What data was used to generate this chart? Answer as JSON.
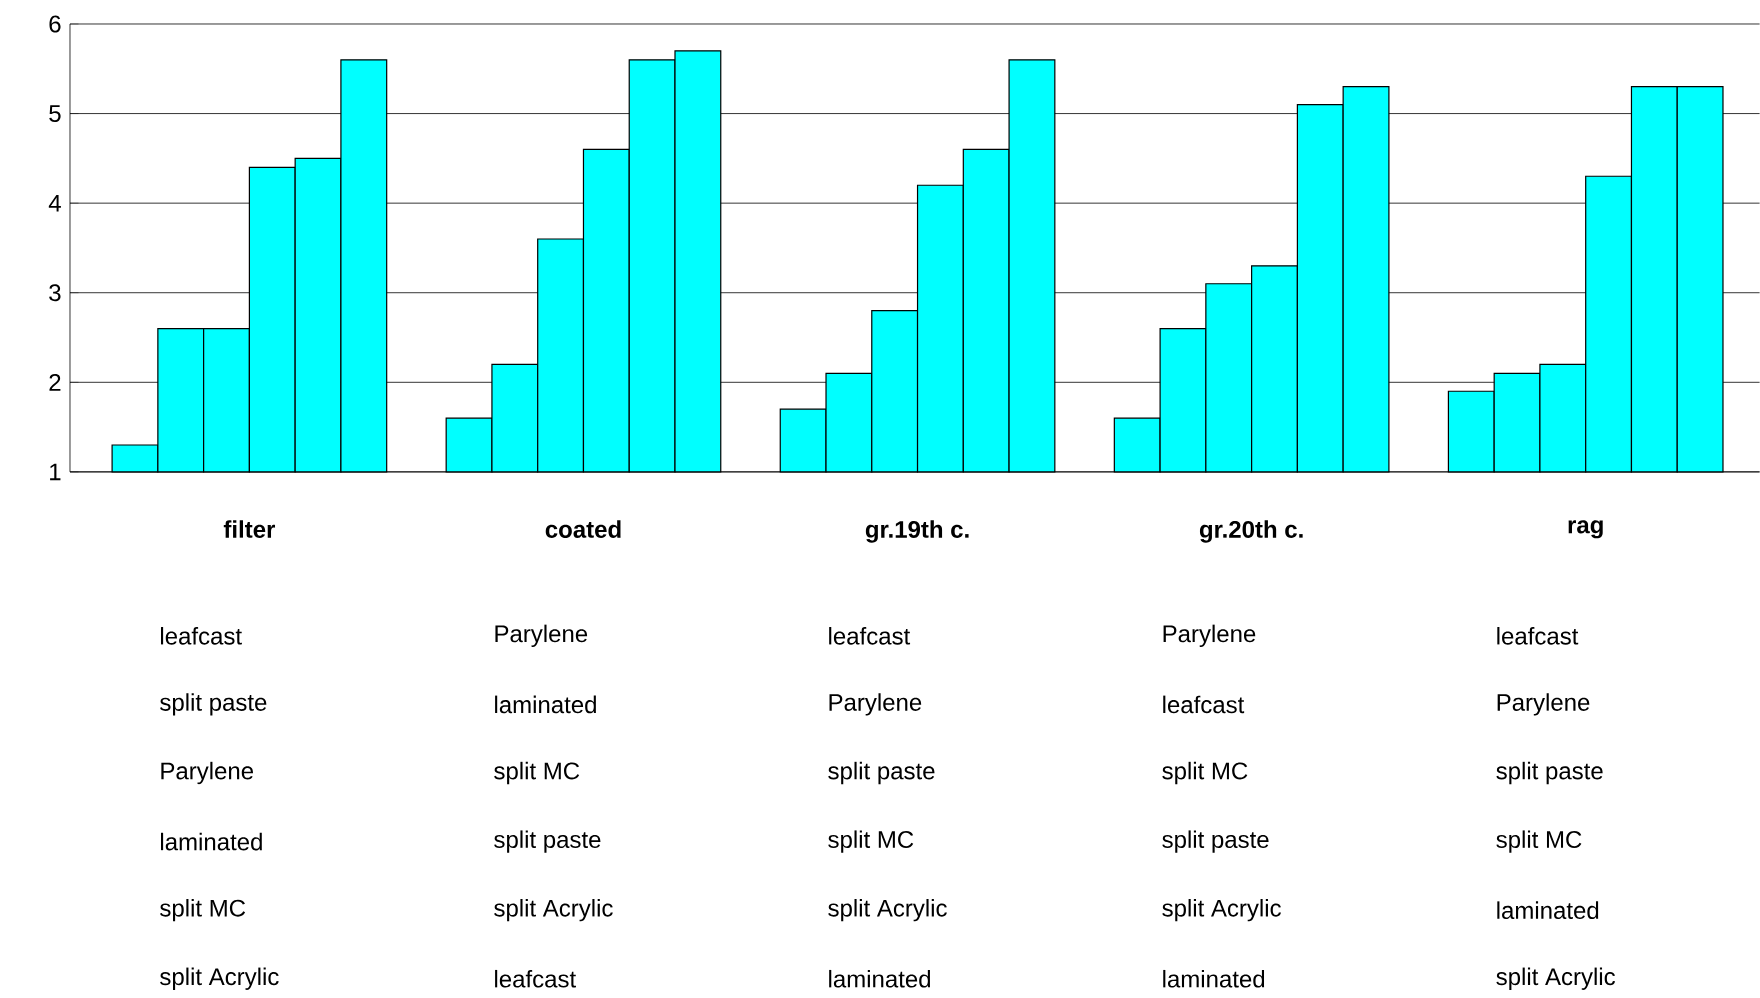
{
  "chart_data": {
    "type": "bar",
    "categories": [
      "filter",
      "coated",
      "gr.19th c.",
      "gr.20th c.",
      "rag"
    ],
    "series": [
      {
        "color": "#00ffff",
        "values": [
          1.3,
          1.6,
          1.7,
          1.6,
          1.9
        ]
      },
      {
        "color": "#00ffff",
        "values": [
          2.6,
          2.2,
          2.1,
          2.6,
          2.1
        ]
      },
      {
        "color": "#00ffff",
        "values": [
          2.6,
          3.6,
          2.8,
          3.1,
          2.2
        ]
      },
      {
        "color": "#00ffff",
        "values": [
          4.4,
          4.6,
          4.2,
          3.3,
          4.3
        ]
      },
      {
        "color": "#00ffff",
        "values": [
          4.5,
          5.6,
          4.6,
          5.1,
          5.3
        ]
      },
      {
        "color": "#00ffff",
        "values": [
          5.6,
          5.7,
          5.6,
          5.3,
          5.3
        ]
      }
    ],
    "annotations": [
      "leafcast",
      "split paste",
      "Parylene",
      "laminated",
      "split MC",
      "split Acrylic",
      "Parylene",
      "laminated",
      "split MC",
      "split paste",
      "split Acrylic",
      "leafcast",
      "leafcast",
      "Parylene",
      "split paste",
      "split MC",
      "split Acrylic",
      "laminated",
      "Parylene",
      "leafcast",
      "split MC",
      "split paste",
      "split Acrylic",
      "laminated",
      "leafcast",
      "Parylene",
      "split paste",
      "split MC",
      "laminated",
      "split Acrylic"
    ],
    "ylim": [
      1,
      6
    ],
    "yticks": [
      1,
      2,
      3,
      4,
      5,
      6
    ],
    "grid": "y"
  }
}
